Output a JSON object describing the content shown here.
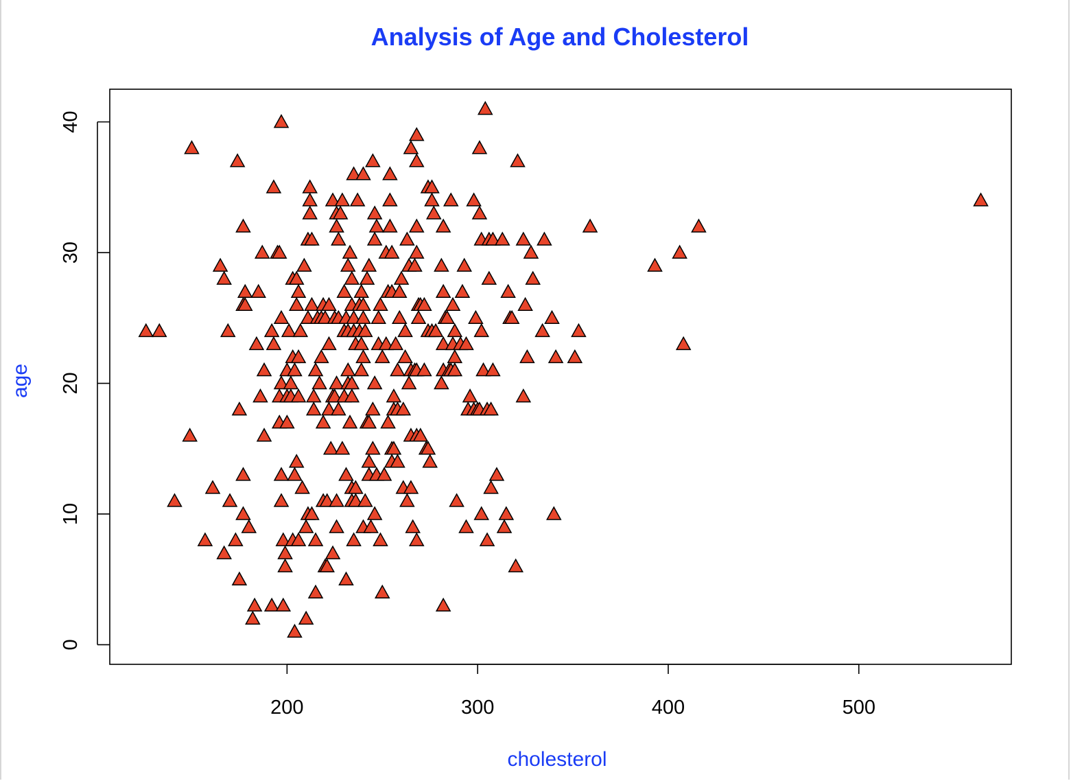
{
  "chart_data": {
    "type": "scatter",
    "title": "Analysis of Age and Cholesterol",
    "xlabel": "cholesterol",
    "ylabel": "age",
    "xlim": [
      107,
      580
    ],
    "ylim": [
      -1.5,
      42.5
    ],
    "x_ticks": [
      200,
      300,
      400,
      500
    ],
    "y_ticks": [
      0,
      10,
      20,
      30,
      40
    ],
    "colors": {
      "title": "#1a3cf5",
      "labels": "#1a3cf5",
      "marker_fill": "#e8452a",
      "marker_stroke": "#000000"
    },
    "marker": "triangle",
    "grid": false,
    "points": [
      [
        126,
        24
      ],
      [
        133,
        24
      ],
      [
        141,
        11
      ],
      [
        149,
        16
      ],
      [
        150,
        38
      ],
      [
        157,
        8
      ],
      [
        161,
        12
      ],
      [
        165,
        29
      ],
      [
        167,
        28
      ],
      [
        167,
        7
      ],
      [
        169,
        24
      ],
      [
        170,
        11
      ],
      [
        173,
        8
      ],
      [
        174,
        37
      ],
      [
        175,
        18
      ],
      [
        175,
        5
      ],
      [
        177,
        26
      ],
      [
        177,
        10
      ],
      [
        177,
        13
      ],
      [
        177,
        32
      ],
      [
        178,
        26
      ],
      [
        178,
        27
      ],
      [
        180,
        9
      ],
      [
        182,
        2
      ],
      [
        183,
        3
      ],
      [
        184,
        23
      ],
      [
        185,
        27
      ],
      [
        186,
        19
      ],
      [
        187,
        30
      ],
      [
        188,
        21
      ],
      [
        188,
        16
      ],
      [
        192,
        24
      ],
      [
        192,
        3
      ],
      [
        193,
        23
      ],
      [
        193,
        35
      ],
      [
        195,
        30
      ],
      [
        196,
        17
      ],
      [
        196,
        19
      ],
      [
        196,
        30
      ],
      [
        197,
        20
      ],
      [
        197,
        25
      ],
      [
        197,
        13
      ],
      [
        197,
        11
      ],
      [
        197,
        40
      ],
      [
        198,
        8
      ],
      [
        198,
        3
      ],
      [
        199,
        7
      ],
      [
        199,
        6
      ],
      [
        200,
        19
      ],
      [
        200,
        21
      ],
      [
        200,
        17
      ],
      [
        201,
        24
      ],
      [
        202,
        20
      ],
      [
        202,
        19
      ],
      [
        203,
        28
      ],
      [
        203,
        8
      ],
      [
        203,
        22
      ],
      [
        204,
        21
      ],
      [
        204,
        13
      ],
      [
        204,
        1
      ],
      [
        205,
        14
      ],
      [
        205,
        26
      ],
      [
        205,
        28
      ],
      [
        206,
        27
      ],
      [
        206,
        22
      ],
      [
        206,
        19
      ],
      [
        206,
        8
      ],
      [
        207,
        24
      ],
      [
        208,
        12
      ],
      [
        209,
        29
      ],
      [
        210,
        9
      ],
      [
        210,
        2
      ],
      [
        211,
        31
      ],
      [
        211,
        25
      ],
      [
        211,
        10
      ],
      [
        212,
        35
      ],
      [
        212,
        34
      ],
      [
        212,
        33
      ],
      [
        213,
        31
      ],
      [
        213,
        26
      ],
      [
        213,
        10
      ],
      [
        214,
        18
      ],
      [
        214,
        19
      ],
      [
        215,
        21
      ],
      [
        215,
        8
      ],
      [
        215,
        4
      ],
      [
        216,
        25
      ],
      [
        217,
        20
      ],
      [
        218,
        22
      ],
      [
        218,
        25
      ],
      [
        219,
        26
      ],
      [
        219,
        17
      ],
      [
        219,
        11
      ],
      [
        220,
        6
      ],
      [
        220,
        25
      ],
      [
        221,
        11
      ],
      [
        221,
        6
      ],
      [
        222,
        26
      ],
      [
        222,
        23
      ],
      [
        222,
        18
      ],
      [
        223,
        15
      ],
      [
        224,
        34
      ],
      [
        224,
        19
      ],
      [
        224,
        7
      ],
      [
        225,
        25
      ],
      [
        225,
        19
      ],
      [
        226,
        33
      ],
      [
        226,
        32
      ],
      [
        226,
        20
      ],
      [
        226,
        11
      ],
      [
        226,
        9
      ],
      [
        227,
        31
      ],
      [
        227,
        25
      ],
      [
        227,
        18
      ],
      [
        228,
        33
      ],
      [
        229,
        34
      ],
      [
        229,
        15
      ],
      [
        230,
        27
      ],
      [
        230,
        24
      ],
      [
        230,
        19
      ],
      [
        231,
        25
      ],
      [
        231,
        13
      ],
      [
        231,
        5
      ],
      [
        232,
        29
      ],
      [
        232,
        21
      ],
      [
        232,
        20
      ],
      [
        232,
        24
      ],
      [
        233,
        30
      ],
      [
        233,
        17
      ],
      [
        234,
        26
      ],
      [
        234,
        28
      ],
      [
        234,
        20
      ],
      [
        234,
        19
      ],
      [
        234,
        12
      ],
      [
        234,
        11
      ],
      [
        235,
        36
      ],
      [
        235,
        25
      ],
      [
        235,
        24
      ],
      [
        235,
        8
      ],
      [
        236,
        23
      ],
      [
        236,
        12
      ],
      [
        236,
        11
      ],
      [
        237,
        34
      ],
      [
        238,
        24
      ],
      [
        238,
        26
      ],
      [
        239,
        21
      ],
      [
        239,
        27
      ],
      [
        239,
        23
      ],
      [
        240,
        36
      ],
      [
        240,
        26
      ],
      [
        240,
        25
      ],
      [
        240,
        22
      ],
      [
        240,
        9
      ],
      [
        241,
        24
      ],
      [
        241,
        11
      ],
      [
        242,
        28
      ],
      [
        242,
        17
      ],
      [
        243,
        29
      ],
      [
        243,
        14
      ],
      [
        243,
        13
      ],
      [
        243,
        17
      ],
      [
        244,
        9
      ],
      [
        245,
        37
      ],
      [
        245,
        18
      ],
      [
        245,
        15
      ],
      [
        246,
        33
      ],
      [
        246,
        31
      ],
      [
        246,
        20
      ],
      [
        246,
        10
      ],
      [
        247,
        32
      ],
      [
        247,
        13
      ],
      [
        248,
        25
      ],
      [
        248,
        23
      ],
      [
        249,
        26
      ],
      [
        249,
        8
      ],
      [
        250,
        22
      ],
      [
        250,
        4
      ],
      [
        251,
        13
      ],
      [
        252,
        30
      ],
      [
        252,
        23
      ],
      [
        253,
        27
      ],
      [
        253,
        17
      ],
      [
        254,
        34
      ],
      [
        254,
        36
      ],
      [
        254,
        32
      ],
      [
        255,
        30
      ],
      [
        255,
        27
      ],
      [
        255,
        14
      ],
      [
        255,
        15
      ],
      [
        256,
        19
      ],
      [
        256,
        18
      ],
      [
        256,
        15
      ],
      [
        257,
        23
      ],
      [
        258,
        18
      ],
      [
        258,
        14
      ],
      [
        258,
        21
      ],
      [
        259,
        27
      ],
      [
        259,
        25
      ],
      [
        260,
        28
      ],
      [
        261,
        12
      ],
      [
        261,
        18
      ],
      [
        262,
        24
      ],
      [
        262,
        22
      ],
      [
        263,
        31
      ],
      [
        263,
        11
      ],
      [
        264,
        29
      ],
      [
        264,
        20
      ],
      [
        265,
        38
      ],
      [
        265,
        21
      ],
      [
        265,
        16
      ],
      [
        265,
        12
      ],
      [
        266,
        9
      ],
      [
        267,
        21
      ],
      [
        267,
        29
      ],
      [
        268,
        39
      ],
      [
        268,
        37
      ],
      [
        268,
        32
      ],
      [
        268,
        30
      ],
      [
        268,
        21
      ],
      [
        268,
        16
      ],
      [
        268,
        8
      ],
      [
        269,
        26
      ],
      [
        269,
        25
      ],
      [
        270,
        16
      ],
      [
        270,
        26
      ],
      [
        272,
        26
      ],
      [
        272,
        21
      ],
      [
        273,
        15
      ],
      [
        274,
        35
      ],
      [
        274,
        24
      ],
      [
        274,
        15
      ],
      [
        275,
        14
      ],
      [
        276,
        35
      ],
      [
        276,
        34
      ],
      [
        276,
        24
      ],
      [
        277,
        33
      ],
      [
        278,
        24
      ],
      [
        281,
        29
      ],
      [
        281,
        20
      ],
      [
        282,
        32
      ],
      [
        282,
        27
      ],
      [
        282,
        23
      ],
      [
        282,
        21
      ],
      [
        282,
        3
      ],
      [
        283,
        25
      ],
      [
        284,
        25
      ],
      [
        285,
        21
      ],
      [
        286,
        34
      ],
      [
        286,
        21
      ],
      [
        287,
        23
      ],
      [
        287,
        26
      ],
      [
        288,
        24
      ],
      [
        288,
        21
      ],
      [
        288,
        22
      ],
      [
        289,
        11
      ],
      [
        291,
        23
      ],
      [
        292,
        27
      ],
      [
        293,
        29
      ],
      [
        294,
        9
      ],
      [
        294,
        23
      ],
      [
        295,
        18
      ],
      [
        296,
        19
      ],
      [
        298,
        34
      ],
      [
        298,
        18
      ],
      [
        299,
        25
      ],
      [
        300,
        18
      ],
      [
        301,
        38
      ],
      [
        301,
        33
      ],
      [
        301,
        18
      ],
      [
        302,
        31
      ],
      [
        302,
        24
      ],
      [
        302,
        10
      ],
      [
        303,
        21
      ],
      [
        304,
        41
      ],
      [
        305,
        18
      ],
      [
        305,
        8
      ],
      [
        306,
        28
      ],
      [
        306,
        31
      ],
      [
        307,
        18
      ],
      [
        307,
        12
      ],
      [
        308,
        21
      ],
      [
        308,
        31
      ],
      [
        310,
        13
      ],
      [
        313,
        31
      ],
      [
        314,
        9
      ],
      [
        315,
        10
      ],
      [
        316,
        27
      ],
      [
        317,
        25
      ],
      [
        318,
        25
      ],
      [
        320,
        6
      ],
      [
        321,
        37
      ],
      [
        324,
        31
      ],
      [
        324,
        19
      ],
      [
        325,
        26
      ],
      [
        326,
        22
      ],
      [
        328,
        30
      ],
      [
        329,
        28
      ],
      [
        334,
        24
      ],
      [
        335,
        31
      ],
      [
        339,
        25
      ],
      [
        340,
        10
      ],
      [
        341,
        22
      ],
      [
        351,
        22
      ],
      [
        353,
        24
      ],
      [
        359,
        32
      ],
      [
        393,
        29
      ],
      [
        406,
        30
      ],
      [
        408,
        23
      ],
      [
        416,
        32
      ],
      [
        564,
        34
      ]
    ]
  }
}
